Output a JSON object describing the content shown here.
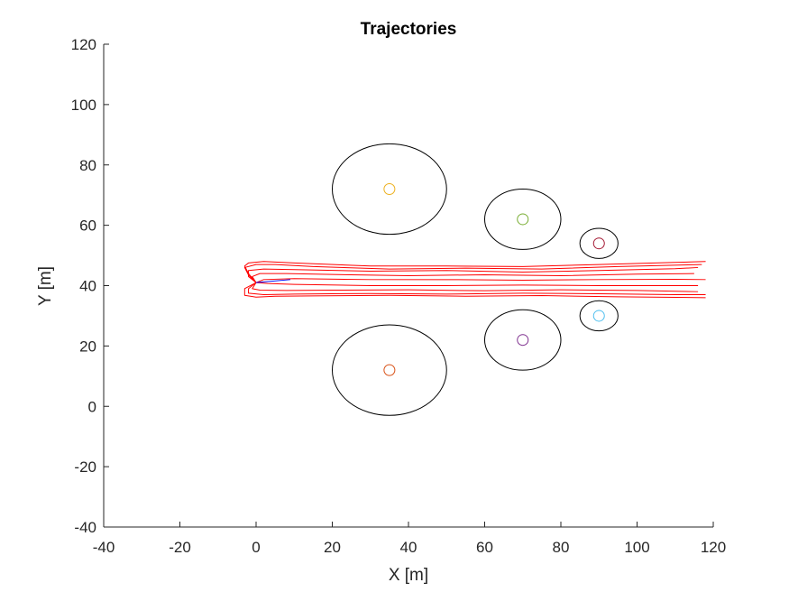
{
  "chart_data": {
    "type": "line",
    "title": "Trajectories",
    "xlabel": "X [m]",
    "ylabel": "Y [m]",
    "xlim": [
      -40,
      120
    ],
    "ylim": [
      -40,
      120
    ],
    "xticks": [
      -40,
      -20,
      0,
      20,
      40,
      60,
      80,
      100,
      120
    ],
    "yticks": [
      -40,
      -20,
      0,
      20,
      40,
      60,
      80,
      100,
      120
    ],
    "xtick_labels": [
      "-40",
      "-20",
      "0",
      "20",
      "40",
      "60",
      "80",
      "100",
      "120"
    ],
    "ytick_labels": [
      "-40",
      "-20",
      "0",
      "20",
      "40",
      "60",
      "80",
      "100",
      "120"
    ],
    "grid": false,
    "legend": "none",
    "obstacles": [
      {
        "center": [
          35,
          72
        ],
        "center_color": "#EDB120",
        "safety_radius_x": 15,
        "safety_radius_y": 15
      },
      {
        "center": [
          70,
          62
        ],
        "center_color": "#77AC30",
        "safety_radius_x": 10,
        "safety_radius_y": 10
      },
      {
        "center": [
          90,
          54
        ],
        "center_color": "#A2142F",
        "safety_radius_x": 5,
        "safety_radius_y": 5
      },
      {
        "center": [
          35,
          12
        ],
        "center_color": "#D95319",
        "safety_radius_x": 15,
        "safety_radius_y": 15
      },
      {
        "center": [
          70,
          22
        ],
        "center_color": "#7E2F8E",
        "safety_radius_x": 10,
        "safety_radius_y": 10
      },
      {
        "center": [
          90,
          30
        ],
        "center_color": "#4DBEEE",
        "safety_radius_x": 5,
        "safety_radius_y": 5
      }
    ],
    "trajectory_color": "#FF0000",
    "series": [
      {
        "x": [
          0,
          -2,
          -3,
          -2,
          2,
          10,
          30,
          50,
          70,
          90,
          110,
          118
        ],
        "y": [
          41,
          44,
          46.5,
          47.5,
          48,
          47.5,
          46.5,
          46.5,
          46.3,
          47,
          47.7,
          48
        ]
      },
      {
        "x": [
          0,
          -2,
          -3,
          0,
          5,
          15,
          35,
          55,
          75,
          95,
          117
        ],
        "y": [
          41,
          43.5,
          46,
          47,
          47,
          46.3,
          45.5,
          45.8,
          45.5,
          46.3,
          47
        ]
      },
      {
        "x": [
          0,
          -2,
          -2,
          2,
          10,
          30,
          50,
          70,
          90,
          110,
          116
        ],
        "y": [
          41,
          43,
          45,
          45.5,
          45.3,
          44.8,
          45,
          44.5,
          45,
          45.6,
          46
        ]
      },
      {
        "x": [
          0,
          -1,
          1,
          8,
          20,
          40,
          60,
          80,
          100,
          115
        ],
        "y": [
          41,
          43,
          44,
          44,
          43.7,
          43.3,
          43.6,
          43.3,
          43.8,
          44
        ]
      },
      {
        "x": [
          0,
          2,
          10,
          30,
          50,
          70,
          90,
          110,
          118
        ],
        "y": [
          41,
          42,
          42.3,
          42,
          42,
          41.8,
          42,
          42.1,
          42
        ]
      },
      {
        "x": [
          0,
          3,
          10,
          30,
          50,
          70,
          90,
          110,
          116
        ],
        "y": [
          41,
          40.7,
          40.4,
          40,
          40,
          40.2,
          40,
          40,
          40
        ]
      },
      {
        "x": [
          0,
          -1,
          1,
          8,
          20,
          40,
          60,
          80,
          100,
          116
        ],
        "y": [
          41,
          39,
          38.5,
          38.4,
          38.5,
          38.6,
          38.3,
          38.6,
          38.4,
          38
        ]
      },
      {
        "x": [
          0,
          -2,
          -2,
          2,
          10,
          30,
          50,
          70,
          90,
          110,
          118
        ],
        "y": [
          41,
          39,
          37.5,
          37,
          37.2,
          37.4,
          37.2,
          37.5,
          37.3,
          37,
          37
        ]
      },
      {
        "x": [
          0,
          -3,
          -3,
          0,
          5,
          15,
          35,
          55,
          75,
          95,
          118
        ],
        "y": [
          41,
          39,
          36.8,
          36.2,
          36.5,
          36.6,
          36.8,
          36.5,
          36.7,
          36.3,
          36
        ]
      }
    ],
    "start_segment": {
      "color": "#0000FF",
      "x": [
        0,
        9
      ],
      "y": [
        41,
        42
      ]
    }
  }
}
